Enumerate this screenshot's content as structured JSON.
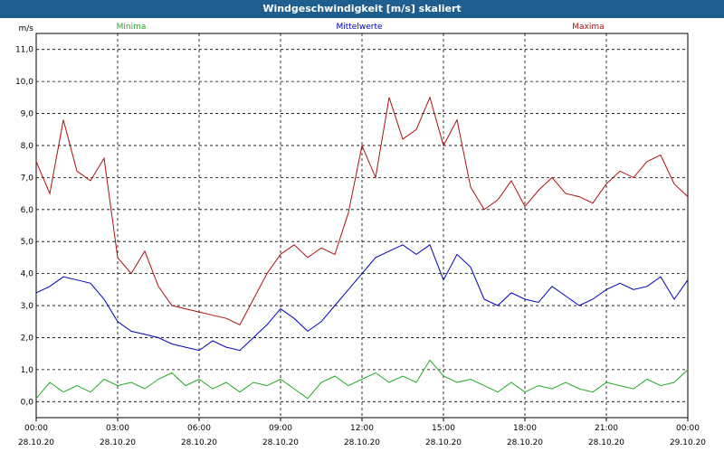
{
  "window": {
    "title": "Windgeschwindigkeit [m/s] skaliert"
  },
  "chart_data": {
    "type": "line",
    "title": "Windgeschwindigkeit [m/s] skaliert",
    "ylabel": "m/s",
    "xlabel": "",
    "ylim": [
      -0.5,
      11.5
    ],
    "xlim": [
      0,
      24
    ],
    "grid": true,
    "y_ticks": [
      "0,0",
      "1,0",
      "2,0",
      "3,0",
      "4,0",
      "5,0",
      "6,0",
      "7,0",
      "8,0",
      "9,0",
      "10,0",
      "11,0"
    ],
    "x_ticks": [
      {
        "time": "00:00",
        "date": "28.10.20"
      },
      {
        "time": "03:00",
        "date": "28.10.20"
      },
      {
        "time": "06:00",
        "date": "28.10.20"
      },
      {
        "time": "09:00",
        "date": "28.10.20"
      },
      {
        "time": "12:00",
        "date": "28.10.20"
      },
      {
        "time": "15:00",
        "date": "28.10.20"
      },
      {
        "time": "18:00",
        "date": "28.10.20"
      },
      {
        "time": "21:00",
        "date": "28.10.20"
      },
      {
        "time": "00:00",
        "date": "29.10.20"
      }
    ],
    "series_colors": {
      "Minima": "#22aa22",
      "Mittelwerte": "#0000bb",
      "Maxima": "#aa1111"
    },
    "x_hours": [
      0,
      0.5,
      1,
      1.5,
      2,
      2.5,
      3,
      3.5,
      4,
      4.5,
      5,
      5.5,
      6,
      6.5,
      7,
      7.5,
      8,
      8.5,
      9,
      9.5,
      10,
      10.5,
      11,
      11.5,
      12,
      12.5,
      13,
      13.5,
      14,
      14.5,
      15,
      15.5,
      16,
      16.5,
      17,
      17.5,
      18,
      18.5,
      19,
      19.5,
      20,
      20.5,
      21,
      21.5,
      22,
      22.5,
      23,
      23.5,
      24
    ],
    "series": [
      {
        "name": "Minima",
        "values": [
          0.1,
          0.6,
          0.3,
          0.5,
          0.3,
          0.7,
          0.5,
          0.6,
          0.4,
          0.7,
          0.9,
          0.5,
          0.7,
          0.4,
          0.6,
          0.3,
          0.6,
          0.5,
          0.7,
          0.4,
          0.1,
          0.6,
          0.8,
          0.5,
          0.7,
          0.9,
          0.6,
          0.8,
          0.6,
          1.3,
          0.8,
          0.6,
          0.7,
          0.5,
          0.3,
          0.6,
          0.3,
          0.5,
          0.4,
          0.6,
          0.4,
          0.3,
          0.6,
          0.5,
          0.4,
          0.7,
          0.5,
          0.6,
          1.0
        ]
      },
      {
        "name": "Mittelwerte",
        "values": [
          3.4,
          3.6,
          3.9,
          3.8,
          3.7,
          3.2,
          2.5,
          2.2,
          2.1,
          2.0,
          1.8,
          1.7,
          1.6,
          1.9,
          1.7,
          1.6,
          2.0,
          2.4,
          2.9,
          2.6,
          2.2,
          2.5,
          3.0,
          3.5,
          4.0,
          4.5,
          4.7,
          4.9,
          4.6,
          4.9,
          3.8,
          4.6,
          4.2,
          3.2,
          3.0,
          3.4,
          3.2,
          3.1,
          3.6,
          3.3,
          3.0,
          3.2,
          3.5,
          3.7,
          3.5,
          3.6,
          3.9,
          3.2,
          3.8
        ]
      },
      {
        "name": "Maxima",
        "values": [
          7.5,
          6.5,
          8.8,
          7.2,
          6.9,
          7.6,
          4.5,
          4.0,
          4.7,
          3.6,
          3.0,
          2.9,
          2.8,
          2.7,
          2.6,
          2.4,
          3.2,
          4.0,
          4.6,
          4.9,
          4.5,
          4.8,
          4.6,
          5.9,
          8.0,
          7.0,
          9.5,
          8.2,
          8.5,
          9.5,
          8.0,
          8.8,
          6.7,
          6.0,
          6.3,
          6.9,
          6.1,
          6.6,
          7.0,
          6.5,
          6.4,
          6.2,
          6.8,
          7.2,
          7.0,
          7.5,
          7.7,
          6.8,
          6.4
        ]
      }
    ]
  }
}
